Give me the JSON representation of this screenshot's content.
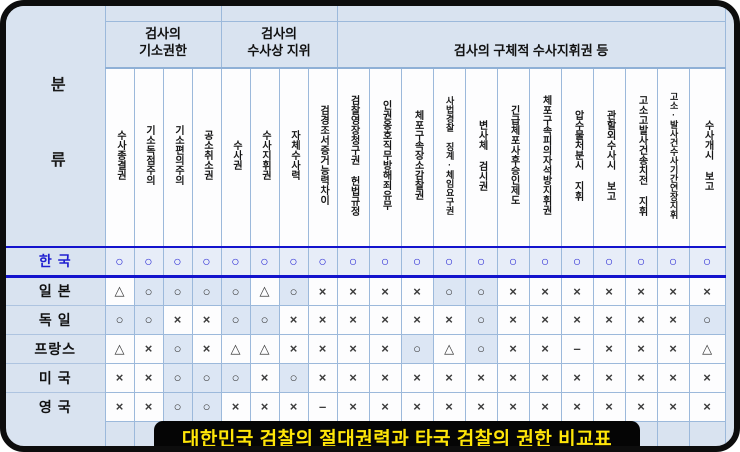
{
  "caption": "대한민국 검찰의 절대권력과 타국 검찰의 권한 비교표",
  "classification_label": "분 류",
  "colors": {
    "frame_background": "#d9e3f0",
    "grid_line": "#9cb9db",
    "korea_line": "#1313cd",
    "korea_symbol": "#2727d4",
    "symbol": "#3c3c3c",
    "circle_cell_tint": "#dce6f4",
    "caption_background": "#050505",
    "caption_text": "#ffe608"
  },
  "chart_data": {
    "type": "table",
    "title": "대한민국 검찰의 절대권력과 타국 검찰의 권한 비교표",
    "column_groups": [
      {
        "label": "검사의\n기소권한",
        "span": 4
      },
      {
        "label": "검사의\n수사상 지위",
        "span": 4
      },
      {
        "label": "검사의 구체적 수사지휘권 등",
        "span": 12
      }
    ],
    "columns": [
      "수사종결권",
      "기소독점주의",
      "기소편의주의",
      "공소취소권",
      "수사권",
      "수사지휘권",
      "자체수사력",
      "검경조서증거능력차이",
      "검찰영장청구권 헌법규정",
      "인권옹호직무방해죄유무",
      "체포구속장소감찰권",
      "사법경찰 징계·체임요구권",
      "변사체 검시권",
      "긴급체포사후승인제도",
      "체포구속피의자석방지휘권",
      "압수물처분시 지휘",
      "관할외수사시 보고",
      "고소고발사건송치전 지휘",
      "고소·발사건수사기간연장지휘",
      "수사개시 보고"
    ],
    "rows": [
      {
        "country": "한 국",
        "highlight": true,
        "values": [
          "○",
          "○",
          "○",
          "○",
          "○",
          "○",
          "○",
          "○",
          "○",
          "○",
          "○",
          "○",
          "○",
          "○",
          "○",
          "○",
          "○",
          "○",
          "○",
          "○"
        ]
      },
      {
        "country": "일 본",
        "highlight": false,
        "values": [
          "△",
          "○",
          "○",
          "○",
          "○",
          "△",
          "○",
          "×",
          "×",
          "×",
          "×",
          "○",
          "○",
          "×",
          "×",
          "×",
          "×",
          "×",
          "×",
          "×"
        ]
      },
      {
        "country": "독 일",
        "highlight": false,
        "values": [
          "○",
          "○",
          "×",
          "×",
          "○",
          "○",
          "×",
          "×",
          "×",
          "×",
          "×",
          "×",
          "○",
          "×",
          "×",
          "×",
          "×",
          "×",
          "×",
          "○"
        ]
      },
      {
        "country": "프랑스",
        "highlight": false,
        "values": [
          "△",
          "×",
          "○",
          "×",
          "△",
          "△",
          "×",
          "×",
          "×",
          "×",
          "○",
          "△",
          "○",
          "×",
          "×",
          "–",
          "×",
          "×",
          "×",
          "△"
        ]
      },
      {
        "country": "미 국",
        "highlight": false,
        "values": [
          "×",
          "×",
          "○",
          "○",
          "○",
          "×",
          "○",
          "×",
          "×",
          "×",
          "×",
          "×",
          "×",
          "×",
          "×",
          "×",
          "×",
          "×",
          "×",
          "×"
        ]
      },
      {
        "country": "영 국",
        "highlight": false,
        "values": [
          "×",
          "×",
          "○",
          "○",
          "×",
          "×",
          "×",
          "–",
          "×",
          "×",
          "×",
          "×",
          "×",
          "×",
          "×",
          "×",
          "×",
          "×",
          "×",
          "×"
        ]
      }
    ]
  }
}
